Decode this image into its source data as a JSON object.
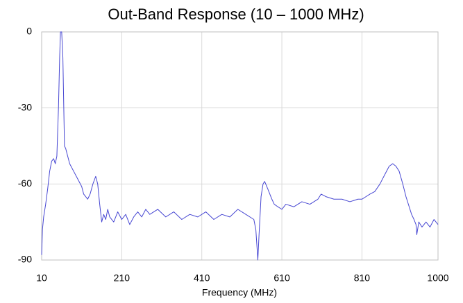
{
  "chart_data": {
    "type": "line",
    "title": "Out-Band Response (10 – 1000 MHz)",
    "xlabel": "Frequency (MHz)",
    "x": [
      10,
      12,
      15,
      20,
      25,
      30,
      35,
      40,
      44,
      48,
      52,
      55,
      57,
      60,
      63,
      67,
      70,
      75,
      80,
      90,
      100,
      110,
      115,
      120,
      125,
      131,
      138,
      145,
      150,
      155,
      160,
      165,
      170,
      175,
      180,
      190,
      200,
      210,
      220,
      230,
      240,
      250,
      260,
      270,
      280,
      290,
      300,
      320,
      340,
      360,
      380,
      400,
      420,
      440,
      460,
      480,
      500,
      520,
      540,
      545,
      550,
      553,
      558,
      563,
      567,
      575,
      585,
      591,
      600,
      610,
      620,
      640,
      660,
      680,
      700,
      708,
      720,
      740,
      760,
      780,
      800,
      810,
      820,
      830,
      842,
      855,
      868,
      878,
      887,
      895,
      903,
      912,
      920,
      928,
      934,
      940,
      945,
      947,
      952,
      960,
      970,
      980,
      990,
      1000
    ],
    "values": [
      -88,
      -78,
      -73,
      -68,
      -62,
      -55,
      -51,
      -50,
      -52,
      -49,
      -30,
      -10,
      0,
      0,
      -10,
      -45,
      -46,
      -49,
      -52,
      -55,
      -58,
      -61,
      -64,
      -65,
      -66,
      -64,
      -60,
      -57,
      -60,
      -68,
      -75,
      -72,
      -74,
      -70,
      -73,
      -75,
      -71,
      -74,
      -72,
      -76,
      -73,
      -71,
      -73,
      -70,
      -72,
      -71,
      -70,
      -73,
      -71,
      -74,
      -72,
      -73,
      -71,
      -74,
      -72,
      -73,
      -70,
      -72,
      -74,
      -78,
      -90,
      -80,
      -65,
      -60,
      -59,
      -62,
      -66,
      -68,
      -69,
      -70,
      -68,
      -69,
      -67,
      -68,
      -66,
      -64,
      -65,
      -66,
      -66,
      -67,
      -66,
      -66,
      -65,
      -64,
      -63,
      -60,
      -56,
      -53,
      -52,
      -53,
      -55,
      -60,
      -65,
      -69,
      -72,
      -74,
      -76,
      -80,
      -75,
      -77,
      -75,
      -77,
      -74,
      -76
    ],
    "color": "#4646d2",
    "xlim": [
      10,
      1000
    ],
    "xticks": [
      10,
      210,
      410,
      610,
      810,
      1000
    ],
    "ylim": [
      -90,
      0
    ],
    "yticks": [
      0,
      -30,
      -60,
      -90
    ],
    "grid": true
  }
}
